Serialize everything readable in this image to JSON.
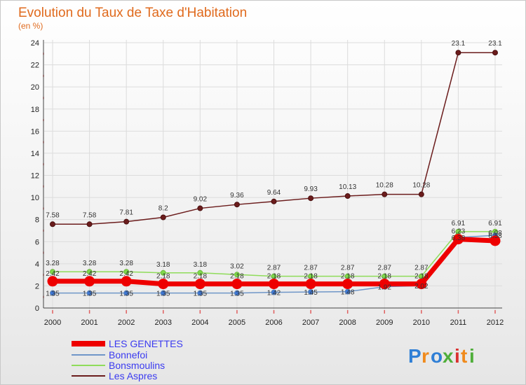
{
  "chart_data": {
    "type": "line",
    "title": "Evolution du Taux de Taxe d'Habitation",
    "subtitle": "(en %)",
    "categories": [
      "2000",
      "2001",
      "2002",
      "2003",
      "2004",
      "2005",
      "2006",
      "2007",
      "2008",
      "2009",
      "2010",
      "2011",
      "2012"
    ],
    "ylim": [
      0,
      24
    ],
    "yticks": [
      0,
      2,
      4,
      6,
      8,
      10,
      12,
      14,
      16,
      18,
      20,
      22,
      24
    ],
    "legend_position": "bottom-left",
    "series": [
      {
        "name": "LES GENETTES",
        "color": "#ee0000",
        "values": [
          2.42,
          2.42,
          2.42,
          2.18,
          2.18,
          2.18,
          2.18,
          2.18,
          2.18,
          2.18,
          2.18,
          6.23,
          6.08
        ],
        "labels": [
          "2.42",
          "2.42",
          "2.42",
          "2.18",
          "2.18",
          "2.18",
          "2.18",
          "2.18",
          "2.18",
          "2.18",
          "2.18",
          "6.23",
          "6.08"
        ]
      },
      {
        "name": "Bonnefoi",
        "color": "#6f96c8",
        "values": [
          1.35,
          1.35,
          1.35,
          1.35,
          1.35,
          1.35,
          1.42,
          1.45,
          1.48,
          1.92,
          2.02,
          6.38,
          6.58
        ],
        "labels": [
          "1.35",
          "1.35",
          "1.35",
          "1.35",
          "1.35",
          "1.35",
          "1.42",
          "1.45",
          "1.48",
          "1.92",
          "2.02",
          "6.38",
          "6.58"
        ]
      },
      {
        "name": "Bonsmoulins",
        "color": "#8fdc5a",
        "values": [
          3.28,
          3.28,
          3.28,
          3.18,
          3.18,
          3.02,
          2.87,
          2.87,
          2.87,
          2.87,
          2.87,
          6.91,
          6.91
        ],
        "labels": [
          "3.28",
          "3.28",
          "3.28",
          "3.18",
          "3.18",
          "3.02",
          "2.87",
          "2.87",
          "2.87",
          "2.87",
          "2.87",
          "6.91",
          "6.91"
        ]
      },
      {
        "name": "Les Aspres",
        "color": "#6b1c1c",
        "values": [
          7.58,
          7.58,
          7.81,
          8.2,
          9.02,
          9.36,
          9.64,
          9.93,
          10.13,
          10.28,
          10.28,
          23.1,
          23.1
        ],
        "labels": [
          "7.58",
          "7.58",
          "7.81",
          "8.2",
          "9.02",
          "9.36",
          "9.64",
          "9.93",
          "10.13",
          "10.28",
          "10.28",
          "23.1",
          "23.1"
        ]
      }
    ]
  },
  "logo": {
    "text": "Proxiti",
    "letters": [
      "P",
      "r",
      "o",
      "x",
      "i",
      "t",
      "i"
    ],
    "colors": [
      "#2f7fd6",
      "#f08a1c",
      "#2f7fd6",
      "#4fae3a",
      "#d9302f",
      "#f08a1c",
      "#4fae3a"
    ]
  }
}
